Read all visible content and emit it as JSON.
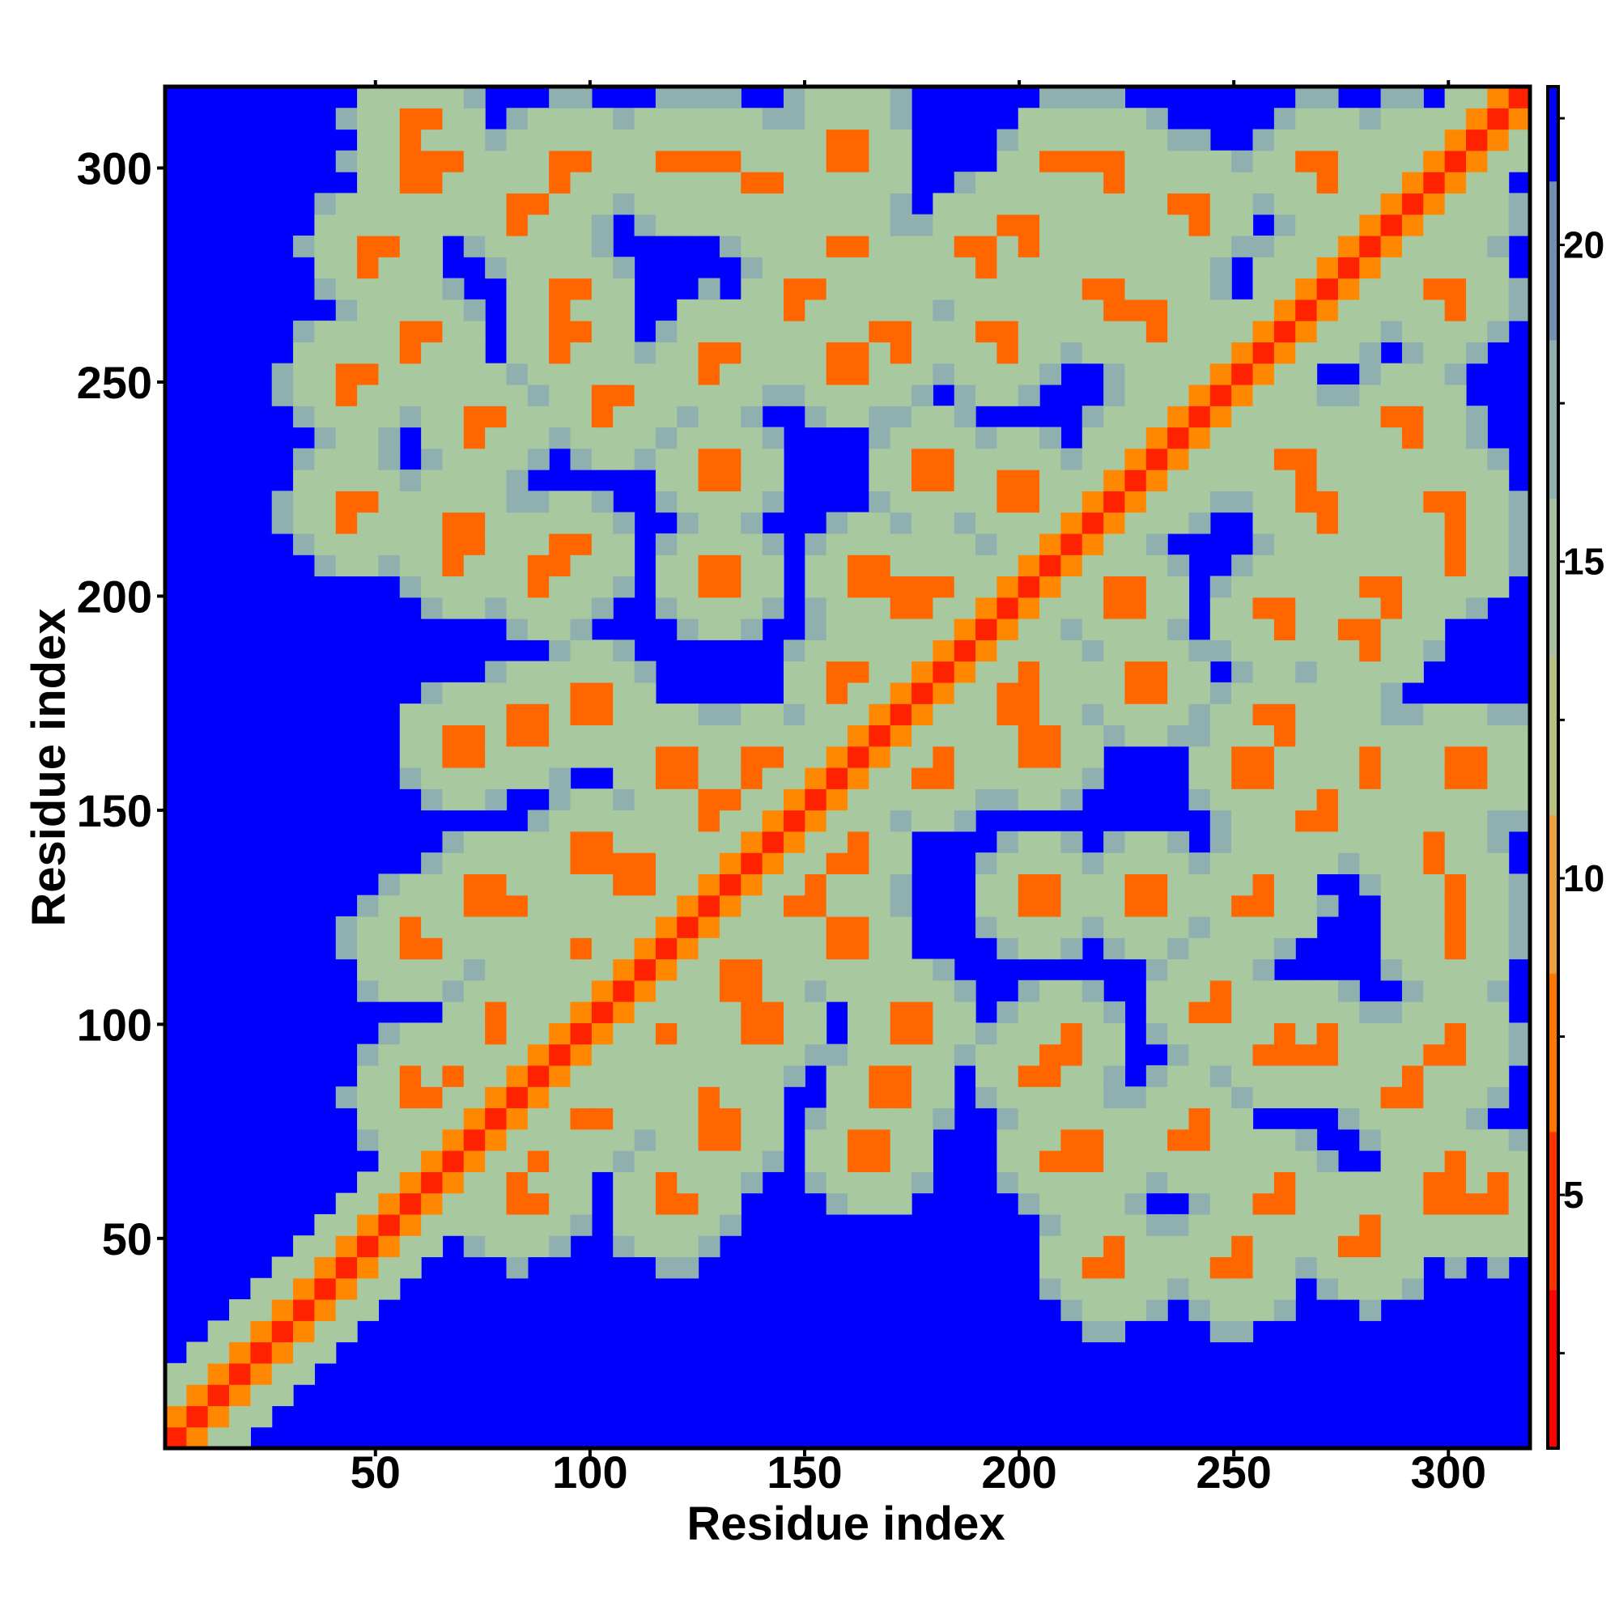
{
  "chart_data": {
    "type": "heatmap",
    "title": "",
    "xlabel": "Residue index",
    "ylabel": "Residue index",
    "xlim": [
      1,
      319
    ],
    "ylim": [
      1,
      319
    ],
    "x_ticks": [
      50,
      100,
      150,
      200,
      250,
      300
    ],
    "y_ticks": [
      50,
      100,
      150,
      200,
      250,
      300
    ],
    "colorbar": {
      "ticks": [
        5,
        10,
        15,
        20
      ],
      "range": [
        1,
        22.5
      ],
      "cutoff_value": 20,
      "out_of_range_color": "#0000ff",
      "colors": [
        "#ff0000",
        "#ff3300",
        "#ff7700",
        "#e8a040",
        "#b8c080",
        "#a8c0a0",
        "#90b0b0",
        "#7090b0"
      ]
    },
    "pattern": {
      "diagonal_band_color": "#ff2200",
      "contact_center_color": "#ff6600",
      "halo_color": "#a8c8a0",
      "background_color": "#0000ff"
    }
  }
}
